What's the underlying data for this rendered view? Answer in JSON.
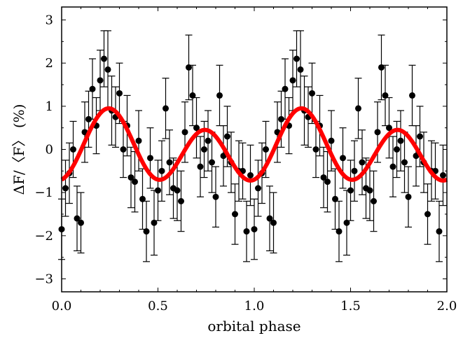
{
  "chart_data": {
    "type": "scatter",
    "title": "",
    "xlabel": "orbital phase",
    "ylabel": "ΔF/〈F〉 (%)",
    "xlim": [
      0.0,
      2.0
    ],
    "ylim": [
      -3.3,
      3.3
    ],
    "xticks": [
      0.0,
      0.5,
      1.0,
      1.5,
      2.0
    ],
    "xtick_labels": [
      "0.0",
      "0.5",
      "1.0",
      "1.5",
      "2.0"
    ],
    "yticks": [
      -3,
      -2,
      -1,
      0,
      1,
      2,
      3
    ],
    "ytick_labels": [
      "−3",
      "−2",
      "−1",
      "0",
      "1",
      "2",
      "3"
    ],
    "grid": false,
    "colors": {
      "points": "#000000",
      "model": "#ff0000"
    },
    "series": [
      {
        "kind": "points_with_errorbars",
        "period": 1.0,
        "x": [
          0.0,
          0.02,
          0.04,
          0.06,
          0.08,
          0.1,
          0.12,
          0.14,
          0.16,
          0.18,
          0.2,
          0.22,
          0.24,
          0.26,
          0.28,
          0.3,
          0.32,
          0.34,
          0.36,
          0.38,
          0.4,
          0.42,
          0.44,
          0.46,
          0.48,
          0.5,
          0.52,
          0.54,
          0.56,
          0.58,
          0.6,
          0.62,
          0.64,
          0.66,
          0.68,
          0.7,
          0.72,
          0.74,
          0.76,
          0.78,
          0.8,
          0.82,
          0.84,
          0.86,
          0.88,
          0.9,
          0.92,
          0.94,
          0.96,
          0.98
        ],
        "y": [
          -1.85,
          -0.9,
          -0.55,
          0.0,
          -1.6,
          -1.7,
          0.4,
          0.7,
          1.4,
          0.55,
          1.6,
          2.1,
          1.85,
          0.9,
          0.75,
          1.3,
          0.0,
          0.55,
          -0.65,
          -0.75,
          0.2,
          -1.15,
          -1.9,
          -0.2,
          -1.7,
          -0.95,
          -0.5,
          0.95,
          -0.3,
          -0.9,
          -0.95,
          -1.2,
          0.4,
          1.9,
          1.25,
          0.5,
          -0.4,
          0.0,
          0.2,
          -0.3,
          -1.1,
          1.25,
          -0.15,
          0.3,
          -0.3,
          -1.5,
          -0.5,
          -0.5,
          -1.9,
          -0.6
        ],
        "err": [
          0.7,
          0.65,
          0.7,
          0.65,
          0.75,
          0.7,
          0.7,
          0.65,
          0.7,
          0.65,
          0.7,
          0.65,
          0.9,
          0.8,
          0.7,
          0.7,
          0.65,
          0.7,
          0.7,
          0.7,
          0.7,
          0.7,
          0.7,
          0.7,
          0.75,
          0.7,
          0.7,
          0.7,
          0.75,
          0.7,
          0.7,
          0.7,
          0.7,
          0.75,
          0.7,
          0.7,
          0.7,
          0.65,
          0.7,
          0.7,
          0.7,
          0.7,
          0.7,
          0.7,
          0.7,
          0.7,
          0.7,
          0.65,
          0.7,
          0.7
        ]
      },
      {
        "kind": "model_curve",
        "period": 1.0,
        "model": {
          "offset": 0.0,
          "terms": [
            {
              "amplitude": 0.25,
              "harmonic": 1,
              "form": "sin"
            },
            {
              "amplitude": -0.7,
              "harmonic": 2,
              "form": "cos"
            },
            {
              "amplitude": 0.05,
              "harmonic": 2,
              "form": "sin"
            }
          ]
        }
      }
    ]
  }
}
